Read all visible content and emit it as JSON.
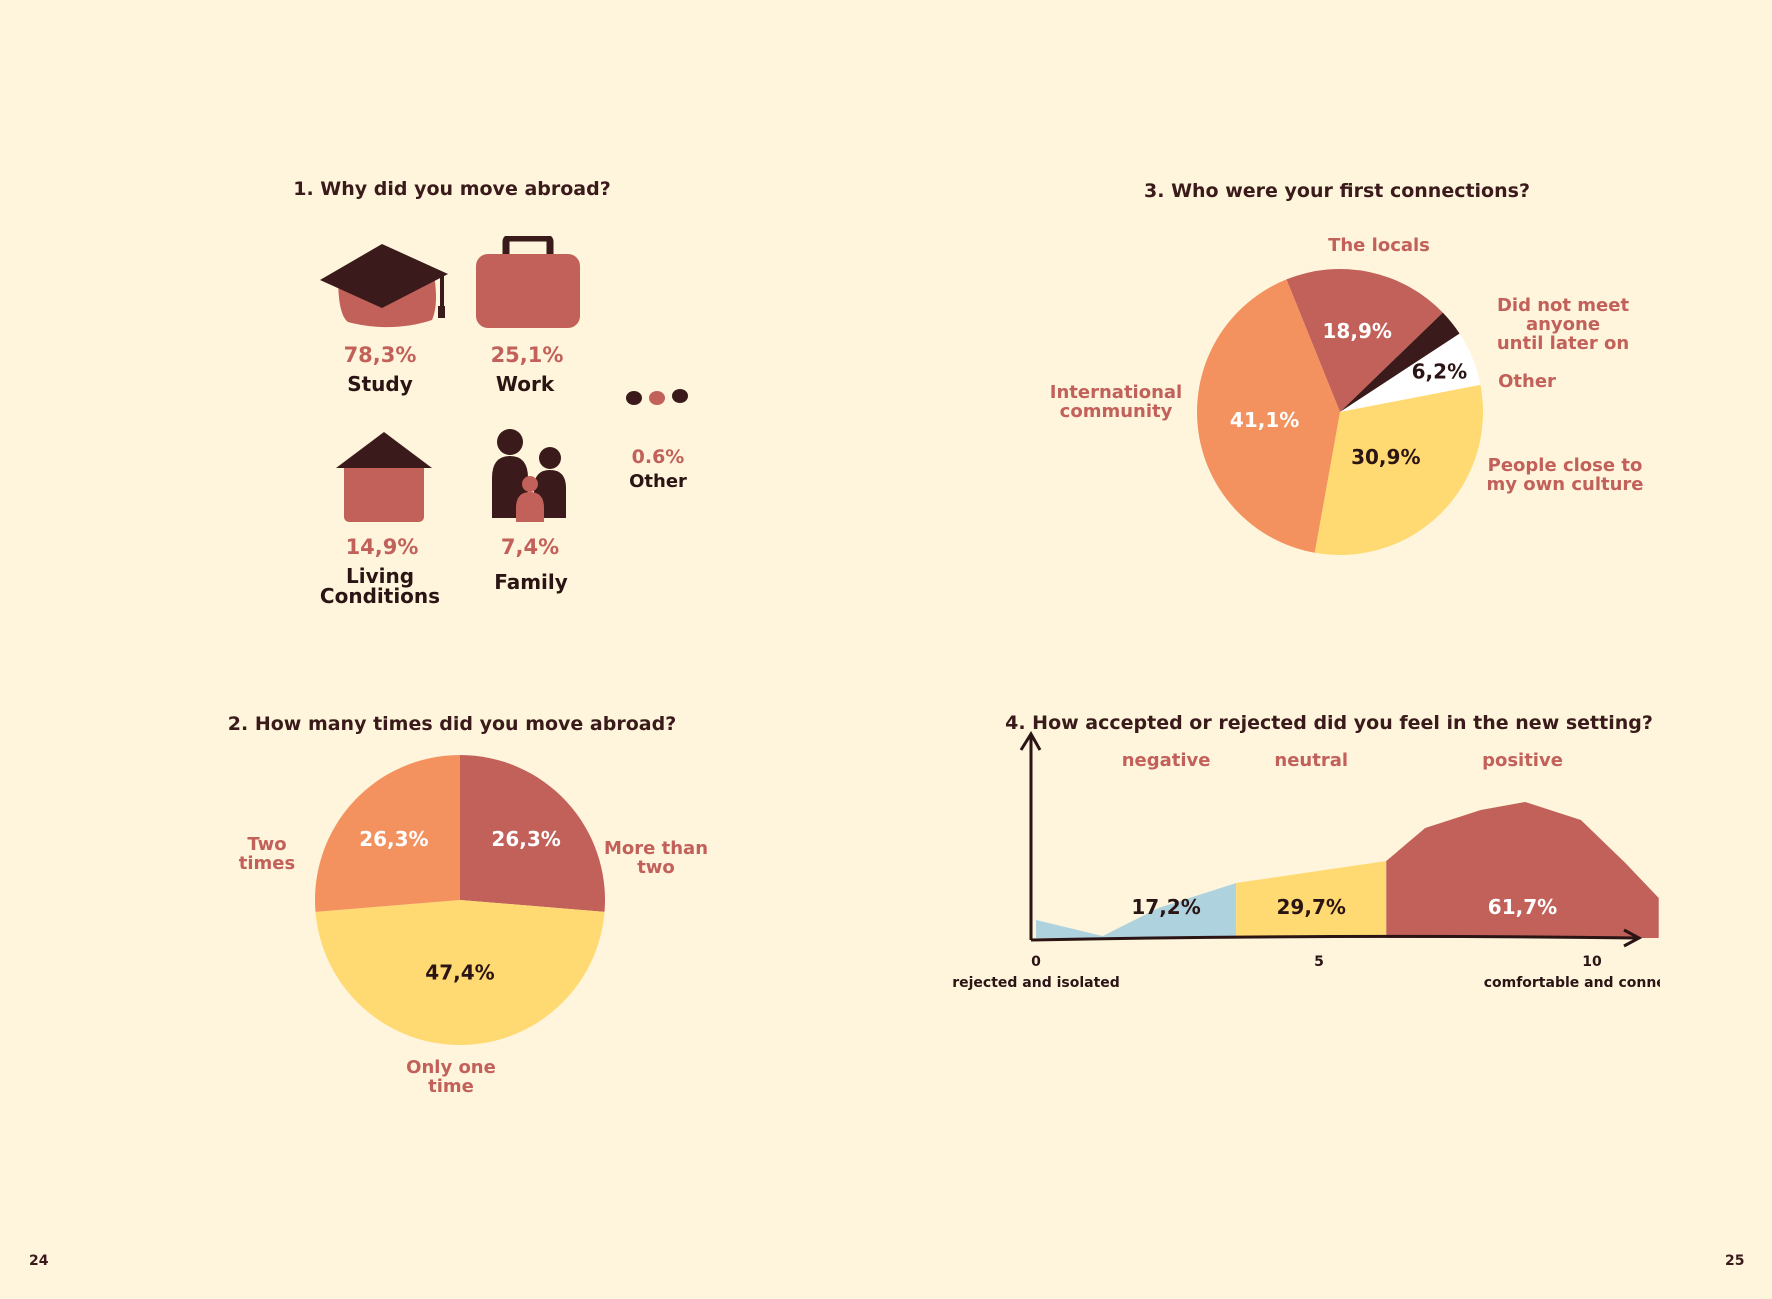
{
  "page_numbers": {
    "left": "24",
    "right": "25"
  },
  "colors": {
    "background": "#FEF5DC",
    "dark": "#3A1A1A",
    "red": "#C2605A",
    "orange": "#F4925F",
    "yellow": "#FFDA72",
    "blue": "#AED3DF",
    "white": "#FFFFFF"
  },
  "q1": {
    "title": "1. Why did you move abroad?",
    "items": [
      {
        "icon": "graduation-cap-icon",
        "value": "78,3%",
        "label": "Study"
      },
      {
        "icon": "briefcase-icon",
        "value": "25,1%",
        "label": "Work"
      },
      {
        "icon": "house-icon",
        "value": "14,9%",
        "label_line1": "Living",
        "label_line2": "Conditions"
      },
      {
        "icon": "family-icon",
        "value": "7,4%",
        "label": "Family"
      },
      {
        "icon": "three-dots-icon",
        "value": "0.6%",
        "label": "Other"
      }
    ]
  },
  "chart_data": [
    {
      "type": "pie",
      "title": "2. How many times did you move abroad?",
      "slices": [
        {
          "label_line1": "More than",
          "label_line2": "two",
          "value": 26.3,
          "value_label": "26,3%",
          "color": "#C2605A"
        },
        {
          "label_line1": "Only one",
          "label_line2": "time",
          "value": 47.4,
          "value_label": "47,4%",
          "color": "#FFDA72"
        },
        {
          "label_line1": "Two",
          "label_line2": "times",
          "value": 26.3,
          "value_label": "26,3%",
          "color": "#F4925F"
        }
      ]
    },
    {
      "type": "pie",
      "title": "3. Who were your first connections?",
      "slices": [
        {
          "label_line1": "The locals",
          "label_line2": "",
          "value": 18.9,
          "value_label": "18,9%",
          "color": "#C2605A"
        },
        {
          "label_line1": "Did not meet anyone",
          "label_line2": "until later on",
          "value": 3.0,
          "value_label": "",
          "color": "#3A1A1A"
        },
        {
          "label_line1": "Other",
          "label_line2": "",
          "value": 6.2,
          "value_label": "6,2%",
          "color": "#FFFFFF"
        },
        {
          "label_line1": "People close to",
          "label_line2": "my own culture",
          "value": 30.9,
          "value_label": "30,9%",
          "color": "#FFDA72"
        },
        {
          "label_line1": "International",
          "label_line2": "community",
          "value": 41.1,
          "value_label": "41,1%",
          "color": "#F4925F"
        }
      ]
    },
    {
      "type": "area",
      "title": "4. How accepted or rejected did you feel in the new setting?",
      "xlim": [
        0,
        10
      ],
      "x_ticks": [
        "0",
        "5",
        "10"
      ],
      "x_end_labels": {
        "left": "rejected and isolated",
        "right": "comfortable and connected"
      },
      "bands": [
        {
          "name": "negative",
          "range": [
            0,
            3.6
          ],
          "value_label": "17,2%",
          "color": "#AED3DF",
          "points": [
            [
              0,
              0.18
            ],
            [
              1.2,
              0.02
            ],
            [
              2.2,
              0.3
            ],
            [
              3.6,
              0.55
            ]
          ]
        },
        {
          "name": "neutral",
          "range": [
            3.6,
            6.3
          ],
          "value_label": "29,7%",
          "color": "#FFDA72",
          "points": [
            [
              3.6,
              0.55
            ],
            [
              6.3,
              0.77
            ]
          ]
        },
        {
          "name": "positive",
          "range": [
            6.3,
            11.2
          ],
          "value_label": "61,7%",
          "color": "#C2605A",
          "points": [
            [
              6.3,
              0.77
            ],
            [
              7.0,
              1.1
            ],
            [
              8.0,
              1.28
            ],
            [
              8.8,
              1.36
            ],
            [
              9.8,
              1.18
            ],
            [
              10.6,
              0.75
            ],
            [
              11.2,
              0.4
            ]
          ]
        }
      ]
    }
  ]
}
